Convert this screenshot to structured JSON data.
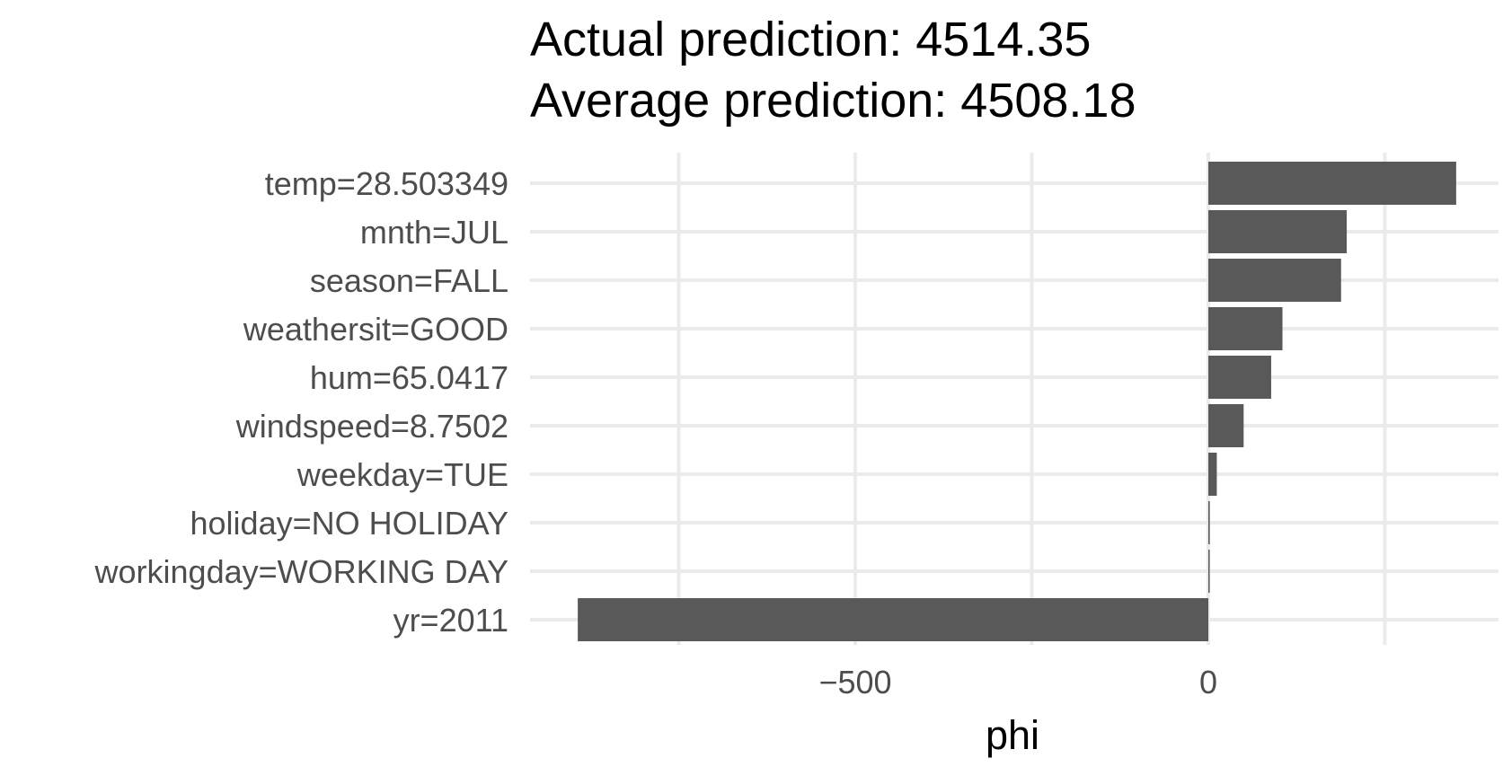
{
  "chart_data": {
    "type": "bar",
    "orientation": "horizontal",
    "title": [
      "Actual prediction: 4514.35",
      "Average prediction: 4508.18"
    ],
    "xlabel": "phi",
    "ylabel": "",
    "categories": [
      "temp=28.503349",
      "mnth=JUL",
      "season=FALL",
      "weathersit=GOOD",
      "hum=65.0417",
      "windspeed=8.7502",
      "weekday=TUE",
      "holiday=NO HOLIDAY",
      "workingday=WORKING DAY",
      "yr=2011"
    ],
    "values": [
      351,
      196,
      188,
      105,
      89,
      50,
      12,
      2,
      1.5,
      -893
    ],
    "xlim": [
      -955,
      415
    ],
    "xticks": [
      -500,
      0
    ],
    "xtick_labels": [
      "−500",
      "0"
    ],
    "grid": true,
    "bar_color": "#595959"
  }
}
